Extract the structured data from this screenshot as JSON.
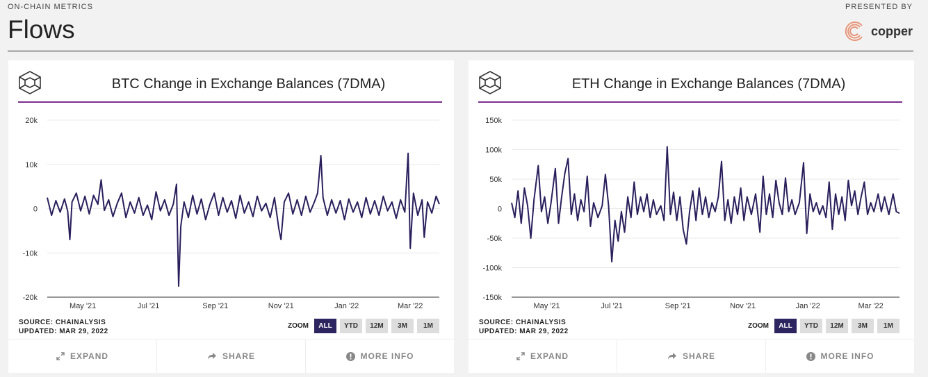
{
  "header": {
    "kicker": "ON-CHAIN METRICS",
    "title": "Flows",
    "presented_by": "PRESENTED BY",
    "sponsor": "copper"
  },
  "colors": {
    "line": "#2a1f5c",
    "accent": "#7b2d8e",
    "active_zoom": "#2d2560",
    "sponsor": "#e8967a"
  },
  "cards": [
    {
      "title": "BTC Change in Exchange Balances (7DMA)",
      "source": "SOURCE: CHAINALYSIS",
      "updated": "UPDATED: MAR 29, 2022",
      "zoom_label": "ZOOM",
      "zoom_options": [
        "ALL",
        "YTD",
        "12M",
        "3M",
        "1M"
      ],
      "zoom_selected": "ALL",
      "actions": [
        "EXPAND",
        "SHARE",
        "MORE INFO"
      ]
    },
    {
      "title": "ETH Change in Exchange Balances (7DMA)",
      "source": "SOURCE: CHAINALYSIS",
      "updated": "UPDATED: MAR 29, 2022",
      "zoom_label": "ZOOM",
      "zoom_options": [
        "ALL",
        "YTD",
        "12M",
        "3M",
        "1M"
      ],
      "zoom_selected": "ALL",
      "actions": [
        "EXPAND",
        "SHARE",
        "MORE INFO"
      ]
    }
  ],
  "chart_data": [
    {
      "type": "line",
      "title": "BTC Change in Exchange Balances (7DMA)",
      "xlim": [
        "2021-03-29",
        "2022-03-28"
      ],
      "ylim": [
        -20000,
        20000
      ],
      "yticks": [
        20000,
        10000,
        0,
        -10000,
        -20000
      ],
      "ytick_labels": [
        "20k",
        "10k",
        "0",
        "-10k",
        "-20k"
      ],
      "xticks": [
        "2021-05-01",
        "2021-07-01",
        "2021-09-01",
        "2021-11-01",
        "2022-01-01",
        "2022-03-01"
      ],
      "xtick_labels": [
        "May '21",
        "Jul '21",
        "Sep '21",
        "Nov '21",
        "Jan '22",
        "Mar '22"
      ],
      "grid": true,
      "points": [
        [
          "2021-03-29",
          2500
        ],
        [
          "2021-04-02",
          -1500
        ],
        [
          "2021-04-06",
          1800
        ],
        [
          "2021-04-10",
          -800
        ],
        [
          "2021-04-14",
          2200
        ],
        [
          "2021-04-17",
          -600
        ],
        [
          "2021-04-19",
          -7000
        ],
        [
          "2021-04-21",
          1500
        ],
        [
          "2021-04-25",
          3500
        ],
        [
          "2021-04-29",
          -500
        ],
        [
          "2021-05-03",
          2800
        ],
        [
          "2021-05-07",
          -1200
        ],
        [
          "2021-05-11",
          3000
        ],
        [
          "2021-05-15",
          1000
        ],
        [
          "2021-05-18",
          6500
        ],
        [
          "2021-05-21",
          -400
        ],
        [
          "2021-05-25",
          2000
        ],
        [
          "2021-05-29",
          -1800
        ],
        [
          "2021-06-02",
          1200
        ],
        [
          "2021-06-06",
          3500
        ],
        [
          "2021-06-10",
          -2000
        ],
        [
          "2021-06-14",
          1500
        ],
        [
          "2021-06-18",
          -1000
        ],
        [
          "2021-06-22",
          2500
        ],
        [
          "2021-06-26",
          -1500
        ],
        [
          "2021-06-30",
          800
        ],
        [
          "2021-07-04",
          -2500
        ],
        [
          "2021-07-08",
          3800
        ],
        [
          "2021-07-12",
          -500
        ],
        [
          "2021-07-16",
          2000
        ],
        [
          "2021-07-20",
          -1500
        ],
        [
          "2021-07-24",
          1000
        ],
        [
          "2021-07-27",
          5500
        ],
        [
          "2021-07-29",
          -17500
        ],
        [
          "2021-07-31",
          -4000
        ],
        [
          "2021-08-03",
          1500
        ],
        [
          "2021-08-07",
          -2000
        ],
        [
          "2021-08-11",
          3000
        ],
        [
          "2021-08-15",
          -1200
        ],
        [
          "2021-08-19",
          2200
        ],
        [
          "2021-08-23",
          -2500
        ],
        [
          "2021-08-27",
          1000
        ],
        [
          "2021-08-31",
          3500
        ],
        [
          "2021-09-04",
          -1500
        ],
        [
          "2021-09-08",
          2500
        ],
        [
          "2021-09-12",
          -800
        ],
        [
          "2021-09-16",
          1800
        ],
        [
          "2021-09-20",
          -2200
        ],
        [
          "2021-09-24",
          3000
        ],
        [
          "2021-09-28",
          -1000
        ],
        [
          "2021-10-02",
          1500
        ],
        [
          "2021-10-06",
          -1800
        ],
        [
          "2021-10-10",
          2800
        ],
        [
          "2021-10-14",
          -500
        ],
        [
          "2021-10-18",
          1200
        ],
        [
          "2021-10-22",
          -2000
        ],
        [
          "2021-10-26",
          2500
        ],
        [
          "2021-10-30",
          -4500
        ],
        [
          "2021-11-01",
          -7000
        ],
        [
          "2021-11-04",
          1500
        ],
        [
          "2021-11-08",
          3500
        ],
        [
          "2021-11-12",
          -1200
        ],
        [
          "2021-11-16",
          2000
        ],
        [
          "2021-11-20",
          -1500
        ],
        [
          "2021-11-24",
          2800
        ],
        [
          "2021-11-28",
          -800
        ],
        [
          "2021-12-02",
          1500
        ],
        [
          "2021-12-05",
          3500
        ],
        [
          "2021-12-08",
          12000
        ],
        [
          "2021-12-10",
          2500
        ],
        [
          "2021-12-14",
          -1500
        ],
        [
          "2021-12-18",
          2000
        ],
        [
          "2021-12-22",
          -1000
        ],
        [
          "2021-12-26",
          1800
        ],
        [
          "2021-12-30",
          -2500
        ],
        [
          "2022-01-03",
          2200
        ],
        [
          "2022-01-07",
          -800
        ],
        [
          "2022-01-11",
          1500
        ],
        [
          "2022-01-15",
          -2000
        ],
        [
          "2022-01-19",
          2500
        ],
        [
          "2022-01-23",
          -1200
        ],
        [
          "2022-01-27",
          1800
        ],
        [
          "2022-01-31",
          -1500
        ],
        [
          "2022-02-04",
          2800
        ],
        [
          "2022-02-08",
          -500
        ],
        [
          "2022-02-12",
          1500
        ],
        [
          "2022-02-16",
          -2200
        ],
        [
          "2022-02-20",
          2000
        ],
        [
          "2022-02-24",
          -800
        ],
        [
          "2022-02-27",
          12500
        ],
        [
          "2022-03-01",
          -9000
        ],
        [
          "2022-03-04",
          3500
        ],
        [
          "2022-03-08",
          -1500
        ],
        [
          "2022-03-12",
          2000
        ],
        [
          "2022-03-14",
          -6500
        ],
        [
          "2022-03-17",
          1500
        ],
        [
          "2022-03-21",
          -1000
        ],
        [
          "2022-03-25",
          2800
        ],
        [
          "2022-03-28",
          1000
        ]
      ]
    },
    {
      "type": "line",
      "title": "ETH Change in Exchange Balances (7DMA)",
      "xlim": [
        "2021-03-29",
        "2022-03-28"
      ],
      "ylim": [
        -150000,
        150000
      ],
      "yticks": [
        150000,
        100000,
        50000,
        0,
        -50000,
        -100000,
        -150000
      ],
      "ytick_labels": [
        "150k",
        "100k",
        "50k",
        "0",
        "-50k",
        "-100k",
        "-150k"
      ],
      "xticks": [
        "2021-05-01",
        "2021-07-01",
        "2021-09-01",
        "2021-11-01",
        "2022-01-01",
        "2022-03-01"
      ],
      "xtick_labels": [
        "May '21",
        "Jul '21",
        "Sep '21",
        "Nov '21",
        "Jan '22",
        "Mar '22"
      ],
      "grid": true,
      "points": [
        [
          "2021-03-29",
          10000
        ],
        [
          "2021-04-01",
          -15000
        ],
        [
          "2021-04-04",
          30000
        ],
        [
          "2021-04-07",
          -25000
        ],
        [
          "2021-04-10",
          35000
        ],
        [
          "2021-04-13",
          5000
        ],
        [
          "2021-04-16",
          -50000
        ],
        [
          "2021-04-19",
          15000
        ],
        [
          "2021-04-23",
          73000
        ],
        [
          "2021-04-26",
          -5000
        ],
        [
          "2021-04-29",
          20000
        ],
        [
          "2021-05-02",
          -25000
        ],
        [
          "2021-05-05",
          10000
        ],
        [
          "2021-05-09",
          68000
        ],
        [
          "2021-05-12",
          -25000
        ],
        [
          "2021-05-15",
          20000
        ],
        [
          "2021-05-18",
          60000
        ],
        [
          "2021-05-21",
          85000
        ],
        [
          "2021-05-24",
          -10000
        ],
        [
          "2021-05-27",
          25000
        ],
        [
          "2021-05-30",
          -20000
        ],
        [
          "2021-06-02",
          15000
        ],
        [
          "2021-06-05",
          -5000
        ],
        [
          "2021-06-08",
          55000
        ],
        [
          "2021-06-11",
          -30000
        ],
        [
          "2021-06-14",
          10000
        ],
        [
          "2021-06-18",
          -15000
        ],
        [
          "2021-06-22",
          5000
        ],
        [
          "2021-06-25",
          58000
        ],
        [
          "2021-06-28",
          5000
        ],
        [
          "2021-07-01",
          -90000
        ],
        [
          "2021-07-04",
          -20000
        ],
        [
          "2021-07-07",
          -55000
        ],
        [
          "2021-07-10",
          -5000
        ],
        [
          "2021-07-13",
          -40000
        ],
        [
          "2021-07-16",
          20000
        ],
        [
          "2021-07-19",
          -15000
        ],
        [
          "2021-07-22",
          45000
        ],
        [
          "2021-07-25",
          -10000
        ],
        [
          "2021-07-28",
          20000
        ],
        [
          "2021-07-31",
          -5000
        ],
        [
          "2021-08-03",
          25000
        ],
        [
          "2021-08-06",
          -15000
        ],
        [
          "2021-08-09",
          15000
        ],
        [
          "2021-08-12",
          -10000
        ],
        [
          "2021-08-16",
          5000
        ],
        [
          "2021-08-19",
          -20000
        ],
        [
          "2021-08-22",
          105000
        ],
        [
          "2021-08-25",
          -10000
        ],
        [
          "2021-08-28",
          28000
        ],
        [
          "2021-08-31",
          -20000
        ],
        [
          "2021-09-03",
          20000
        ],
        [
          "2021-09-06",
          -35000
        ],
        [
          "2021-09-09",
          -60000
        ],
        [
          "2021-09-12",
          -5000
        ],
        [
          "2021-09-15",
          30000
        ],
        [
          "2021-09-18",
          -20000
        ],
        [
          "2021-09-21",
          35000
        ],
        [
          "2021-09-24",
          -10000
        ],
        [
          "2021-09-27",
          20000
        ],
        [
          "2021-09-30",
          -15000
        ],
        [
          "2021-10-03",
          10000
        ],
        [
          "2021-10-06",
          -5000
        ],
        [
          "2021-10-09",
          20000
        ],
        [
          "2021-10-12",
          80000
        ],
        [
          "2021-10-15",
          -20000
        ],
        [
          "2021-10-18",
          15000
        ],
        [
          "2021-10-21",
          -25000
        ],
        [
          "2021-10-24",
          20000
        ],
        [
          "2021-10-27",
          -10000
        ],
        [
          "2021-10-30",
          35000
        ],
        [
          "2021-11-02",
          -20000
        ],
        [
          "2021-11-05",
          20000
        ],
        [
          "2021-11-09",
          -10000
        ],
        [
          "2021-11-13",
          25000
        ],
        [
          "2021-11-17",
          -40000
        ],
        [
          "2021-11-20",
          55000
        ],
        [
          "2021-11-23",
          -10000
        ],
        [
          "2021-11-26",
          25000
        ],
        [
          "2021-11-29",
          -15000
        ],
        [
          "2021-12-02",
          48000
        ],
        [
          "2021-12-05",
          10000
        ],
        [
          "2021-12-08",
          -10000
        ],
        [
          "2021-12-11",
          52000
        ],
        [
          "2021-12-14",
          -5000
        ],
        [
          "2021-12-17",
          15000
        ],
        [
          "2021-12-20",
          -10000
        ],
        [
          "2021-12-24",
          10000
        ],
        [
          "2021-12-28",
          78000
        ],
        [
          "2021-12-31",
          -42000
        ],
        [
          "2022-01-03",
          25000
        ],
        [
          "2022-01-06",
          -5000
        ],
        [
          "2022-01-09",
          10000
        ],
        [
          "2022-01-12",
          -10000
        ],
        [
          "2022-01-15",
          5000
        ],
        [
          "2022-01-18",
          -15000
        ],
        [
          "2022-01-21",
          45000
        ],
        [
          "2022-01-24",
          -35000
        ],
        [
          "2022-01-27",
          25000
        ],
        [
          "2022-01-30",
          -10000
        ],
        [
          "2022-02-02",
          20000
        ],
        [
          "2022-02-05",
          -20000
        ],
        [
          "2022-02-08",
          48000
        ],
        [
          "2022-02-11",
          5000
        ],
        [
          "2022-02-14",
          30000
        ],
        [
          "2022-02-17",
          -10000
        ],
        [
          "2022-02-20",
          20000
        ],
        [
          "2022-02-23",
          45000
        ],
        [
          "2022-02-26",
          -10000
        ],
        [
          "2022-03-01",
          10000
        ],
        [
          "2022-03-04",
          -5000
        ],
        [
          "2022-03-08",
          25000
        ],
        [
          "2022-03-11",
          -5000
        ],
        [
          "2022-03-14",
          20000
        ],
        [
          "2022-03-18",
          -10000
        ],
        [
          "2022-03-22",
          25000
        ],
        [
          "2022-03-25",
          -5000
        ],
        [
          "2022-03-28",
          -8000
        ]
      ]
    }
  ]
}
